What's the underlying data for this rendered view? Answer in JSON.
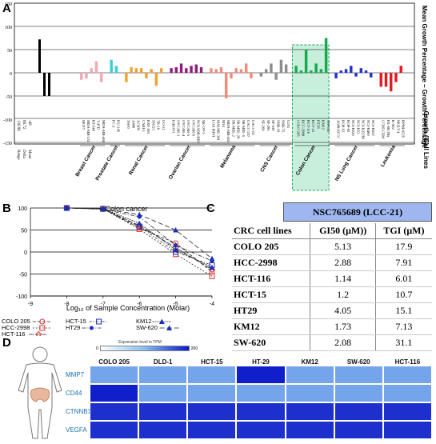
{
  "panels": {
    "a": "A",
    "b": "B",
    "c": "C",
    "d": "D"
  },
  "panel_a": {
    "yaxis_right": "Mean Growth Percentage – Growth Percentage",
    "growth_pct_label": "Growth (%)",
    "cell_lines_label": "Cell Lines",
    "stats_labels": [
      "Range",
      "Delta",
      "Mean"
    ],
    "stats_values": [
      "136.96",
      "66.72",
      "-49"
    ],
    "y_ticks": [
      "150",
      "100",
      "50",
      "0",
      "-50",
      "-100",
      "-150"
    ],
    "groups": [
      "Breast Cancer",
      "Prostate Cancer",
      "Renal Cancer",
      "Ovarian Cancer",
      "Melanoma",
      "CNS Cancer",
      "Colon Cancer",
      "NS Lung Cancer",
      "Leukemia"
    ]
  },
  "panel_b": {
    "title": "Colon cancer",
    "xlabel": "Log₁₀ of Sample Concentration (Molar)",
    "legend": [
      "COLO 205",
      "HCC-2998",
      "HCT-116",
      "HCT-15",
      "HT29",
      "KM12",
      "SW-620"
    ]
  },
  "panel_c": {
    "header": "NSC765689 (LCC-21)",
    "columns": [
      "CRC cell lines",
      "GI50 (μM))",
      "TGI (μM)"
    ],
    "rows": [
      [
        "COLO 205",
        "5.13",
        "17.9"
      ],
      [
        "HCC-2998",
        "2.88",
        "7.91"
      ],
      [
        "HCT-116",
        "1.14",
        "6.01"
      ],
      [
        "HCT-15",
        "1.2",
        "10.7"
      ],
      [
        "HT29",
        "4.05",
        "15.1"
      ],
      [
        "KM12",
        "1.73",
        "7.13"
      ],
      [
        "SW-620",
        "2.08",
        "31.1"
      ]
    ]
  },
  "panel_d": {
    "colorbar_title": "Expression level in TPM",
    "colorbar_min": "0",
    "colorbar_max": "200",
    "columns": [
      "COLO 205",
      "DLD-1",
      "HCT-15",
      "HT-29",
      "KM12",
      "SW-620",
      "HCT-116"
    ],
    "rows": [
      "MMP7",
      "CD44",
      "CTNNB1",
      "VEGFA"
    ],
    "levels": [
      [
        0.15,
        0.15,
        0.15,
        0.95,
        0.15,
        0.15,
        0.15
      ],
      [
        0.95,
        0.15,
        0.15,
        0.15,
        0.15,
        0.15,
        0.15
      ],
      [
        0.85,
        0.85,
        0.85,
        0.85,
        0.85,
        0.85,
        0.85
      ],
      [
        0.85,
        0.85,
        0.85,
        0.85,
        0.85,
        0.85,
        0.85
      ]
    ],
    "colors": {
      "low": "#87bdf0",
      "high": "#0a17c8"
    }
  },
  "chart_data": [
    {
      "type": "bar",
      "y_range": [
        -150,
        150
      ],
      "highlight_group": "Colon Cancer",
      "categories": [
        "MCF7",
        "MDA-MB-231",
        "BT-549",
        "T-47D",
        "MDA-MB-468",
        "PC-3",
        "DU-145",
        "786-0",
        "A498",
        "ACHN",
        "CAKI-1",
        "RXF 393",
        "SN12C",
        "TK-10",
        "UO-31",
        "IGROV1",
        "OVCAR-3",
        "OVCAR-4",
        "OVCAR-5",
        "OVCAR-8",
        "NCI/ADR-RES",
        "SK-OV-3",
        "LOX IMVI",
        "MALME-3M",
        "M14",
        "MDA-MB-435",
        "SK-MEL-2",
        "SK-MEL-28",
        "SK-MEL-5",
        "UACC-257",
        "UACC-62",
        "SF-268",
        "SF-295",
        "SF-539",
        "SNB-19",
        "SNB-75",
        "U251",
        "COLO 205",
        "HCC-2998",
        "HCT-116",
        "HCT-15",
        "HT29",
        "KM12",
        "SW-620",
        "A549/ATCC",
        "HOP-62",
        "HOP-92",
        "NCI-H226",
        "NCI-H23",
        "NCI-H322M",
        "NCI-H460",
        "NCI-H522",
        "CCRF-CEM",
        "HL-60(TB)",
        "K-562",
        "MOLT-4",
        "RPMI-8226"
      ],
      "values": [
        -15,
        -12,
        10,
        25,
        -20,
        28,
        15,
        -20,
        12,
        10,
        10,
        -12,
        8,
        -28,
        10,
        10,
        12,
        20,
        10,
        15,
        18,
        12,
        10,
        8,
        12,
        -55,
        -12,
        10,
        8,
        20,
        -12,
        -8,
        8,
        20,
        -15,
        28,
        18,
        15,
        5,
        50,
        5,
        20,
        8,
        75,
        -12,
        5,
        8,
        15,
        -8,
        10,
        5,
        -10,
        -30,
        -30,
        -40,
        -20,
        15
      ]
    },
    {
      "type": "line",
      "title": "Colon cancer",
      "xlabel": "Log₁₀ of Sample Concentration (Molar)",
      "x": [
        -8,
        -7,
        -6,
        -5,
        -4
      ],
      "xlim": [
        -9,
        -4
      ],
      "ylim": [
        -100,
        100
      ],
      "series": [
        {
          "name": "COLO 205",
          "values": [
            100,
            98,
            55,
            20,
            -45
          ]
        },
        {
          "name": "HCC-2998",
          "values": [
            100,
            98,
            52,
            -5,
            -55
          ]
        },
        {
          "name": "HCT-116",
          "values": [
            100,
            98,
            60,
            10,
            -40
          ]
        },
        {
          "name": "HCT-15",
          "values": [
            100,
            98,
            58,
            0,
            -30
          ]
        },
        {
          "name": "HT29",
          "values": [
            100,
            97,
            80,
            15,
            -20
          ]
        },
        {
          "name": "KM12",
          "values": [
            100,
            99,
            65,
            5,
            -35
          ]
        },
        {
          "name": "SW-620",
          "values": [
            100,
            98,
            85,
            50,
            -15
          ]
        }
      ]
    }
  ]
}
